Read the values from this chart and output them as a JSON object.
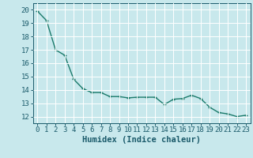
{
  "x": [
    0,
    1,
    2,
    3,
    4,
    5,
    6,
    7,
    8,
    9,
    10,
    11,
    12,
    13,
    14,
    15,
    16,
    17,
    18,
    19,
    20,
    21,
    22,
    23
  ],
  "y": [
    19.9,
    19.2,
    17.0,
    16.6,
    14.8,
    14.1,
    13.8,
    13.8,
    13.5,
    13.5,
    13.4,
    13.45,
    13.45,
    13.45,
    12.9,
    13.3,
    13.35,
    13.6,
    13.35,
    12.7,
    12.3,
    12.2,
    12.0,
    12.1
  ],
  "line_color": "#1a7a6a",
  "marker": "+",
  "bg_color": "#c8e8ec",
  "grid_color": "#ffffff",
  "xlabel": "Humidex (Indice chaleur)",
  "ylim": [
    11.5,
    20.5
  ],
  "xlim": [
    -0.5,
    23.5
  ],
  "yticks": [
    12,
    13,
    14,
    15,
    16,
    17,
    18,
    19,
    20
  ],
  "xticks": [
    0,
    1,
    2,
    3,
    4,
    5,
    6,
    7,
    8,
    9,
    10,
    11,
    12,
    13,
    14,
    15,
    16,
    17,
    18,
    19,
    20,
    21,
    22,
    23
  ],
  "tick_color": "#1a5a6a",
  "label_color": "#1a5a6a",
  "font_size": 6.5,
  "xlabel_font_size": 7.5,
  "linewidth": 1.0,
  "markersize": 3.5,
  "markeredgewidth": 0.9
}
